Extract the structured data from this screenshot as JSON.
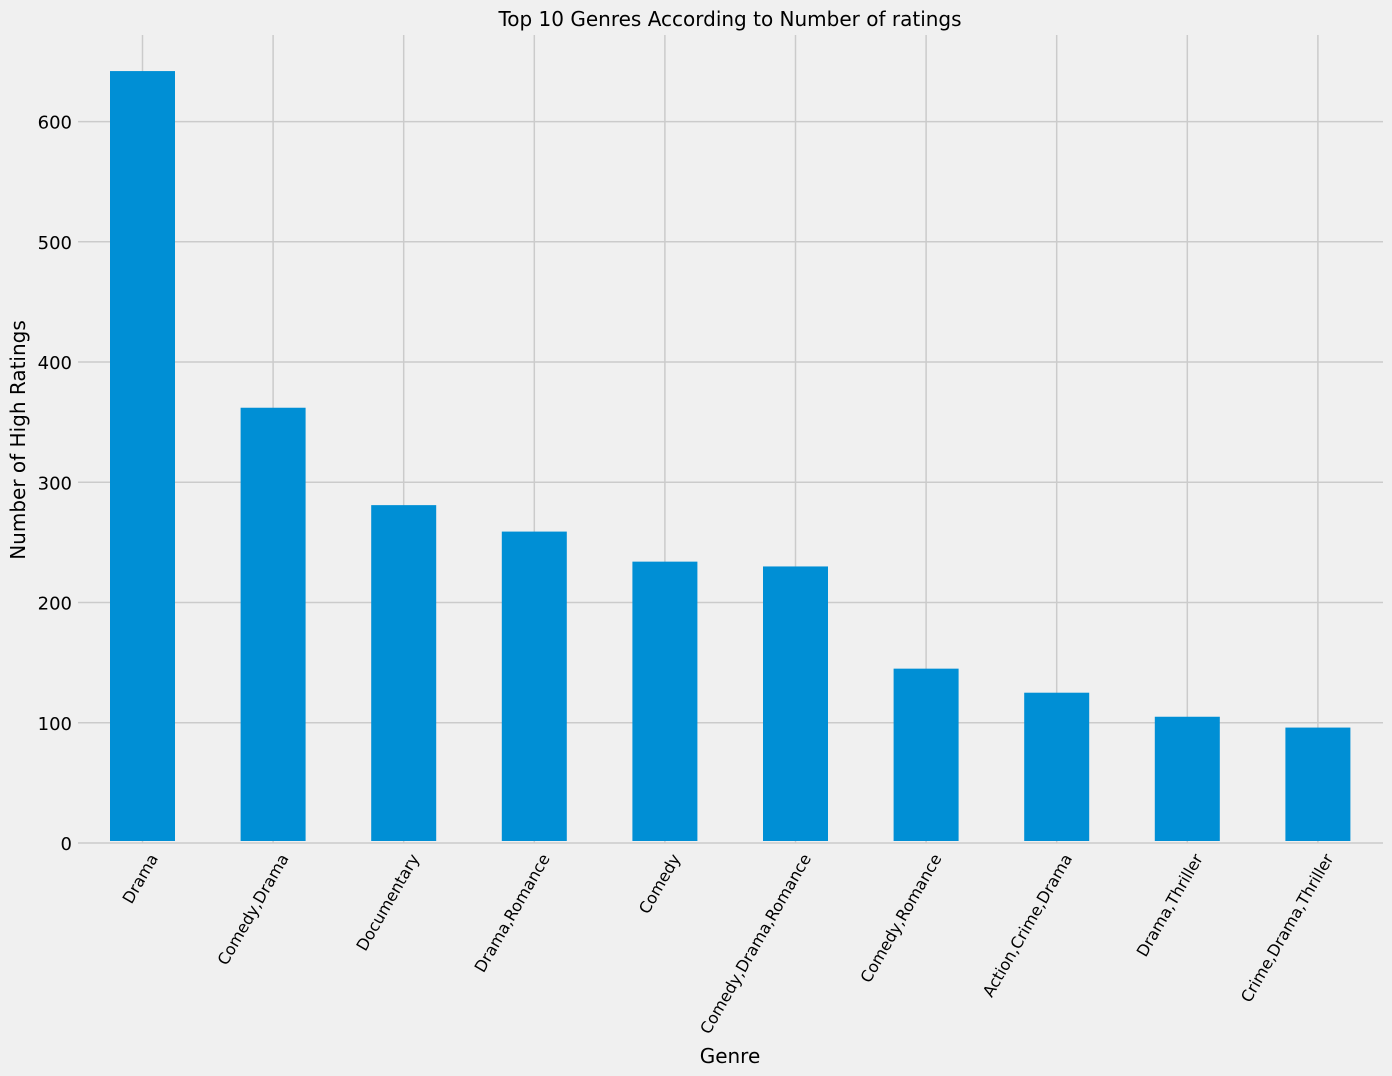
{
  "chart_data": {
    "type": "bar",
    "title": "Top 10 Genres According to Number of ratings",
    "xlabel": "Genre",
    "ylabel": "Number of High Ratings",
    "categories": [
      "Drama",
      "Comedy,Drama",
      "Documentary",
      "Drama,Romance",
      "Comedy",
      "Comedy,Drama,Romance",
      "Comedy,Romance",
      "Action,Crime,Drama",
      "Drama,Thriller",
      "Crime,Drama,Thriller"
    ],
    "values": [
      642,
      362,
      281,
      259,
      234,
      230,
      145,
      125,
      105,
      96
    ],
    "yticks": [
      0,
      100,
      200,
      300,
      400,
      500,
      600
    ],
    "ylim": [
      0,
      672
    ],
    "grid": true,
    "bar_color": "#008fd5",
    "background": "#f0f0f0",
    "grid_color": "#cbcbcb"
  }
}
